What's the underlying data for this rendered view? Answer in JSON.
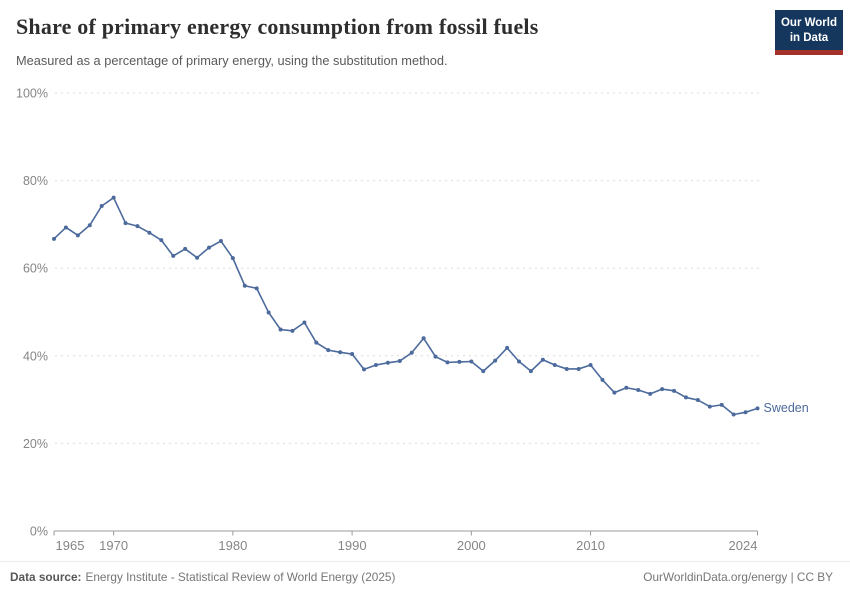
{
  "header": {
    "title": "Share of primary energy consumption from fossil fuels",
    "subtitle": "Measured as a percentage of primary energy, using the substitution method.",
    "logo": {
      "line1": "Our World",
      "line2": "in Data"
    }
  },
  "footer": {
    "datasource_label": "Data source:",
    "datasource_value": "Energy Institute - Statistical Review of World Energy (2025)",
    "credit": "OurWorldinData.org/energy | CC BY"
  },
  "colors": {
    "line": "#4C6A9C",
    "entity_label": "#4C6A9C",
    "grid": "#DBDBDB",
    "axis": "#9B9B9B",
    "tick_text": "#868686",
    "logo_bg": "#15375E",
    "logo_stripe": "#A4312A"
  },
  "chart_data": {
    "type": "line",
    "entity": "Sweden",
    "unit": "%",
    "title": "Share of primary energy consumption from fossil fuels",
    "xlabel": "",
    "ylabel": "",
    "ylim": [
      0,
      100
    ],
    "yticks": [
      0,
      20,
      40,
      60,
      80,
      100
    ],
    "ytick_suffix": "%",
    "xticks": [
      1965,
      1970,
      1980,
      1990,
      2000,
      2010,
      2024
    ],
    "grid": "horizontal-dashed",
    "legend_position": "end-of-line",
    "x": [
      1965,
      1966,
      1967,
      1968,
      1969,
      1970,
      1971,
      1972,
      1973,
      1974,
      1975,
      1976,
      1977,
      1978,
      1979,
      1980,
      1981,
      1982,
      1983,
      1984,
      1985,
      1986,
      1987,
      1988,
      1989,
      1990,
      1991,
      1992,
      1993,
      1994,
      1995,
      1996,
      1997,
      1998,
      1999,
      2000,
      2001,
      2002,
      2003,
      2004,
      2005,
      2006,
      2007,
      2008,
      2009,
      2010,
      2011,
      2012,
      2013,
      2014,
      2015,
      2016,
      2017,
      2018,
      2019,
      2020,
      2021,
      2022,
      2023,
      2024
    ],
    "values": [
      66.7,
      69.3,
      67.5,
      69.8,
      74.2,
      76.1,
      70.3,
      69.6,
      68.1,
      66.4,
      62.8,
      64.4,
      62.4,
      64.7,
      66.2,
      62.3,
      56.0,
      55.4,
      49.9,
      46.0,
      45.7,
      47.6,
      43.0,
      41.3,
      40.8,
      40.4,
      36.9,
      37.9,
      38.4,
      38.8,
      40.7,
      44.0,
      39.8,
      38.5,
      38.6,
      38.7,
      36.5,
      38.9,
      41.8,
      38.7,
      36.5,
      39.1,
      37.9,
      37.0,
      37.0,
      37.9,
      34.5,
      31.6,
      32.7,
      32.2,
      31.3,
      32.4,
      32.0,
      30.5,
      29.9,
      28.4,
      28.8,
      26.6,
      27.1,
      28.0
    ]
  }
}
